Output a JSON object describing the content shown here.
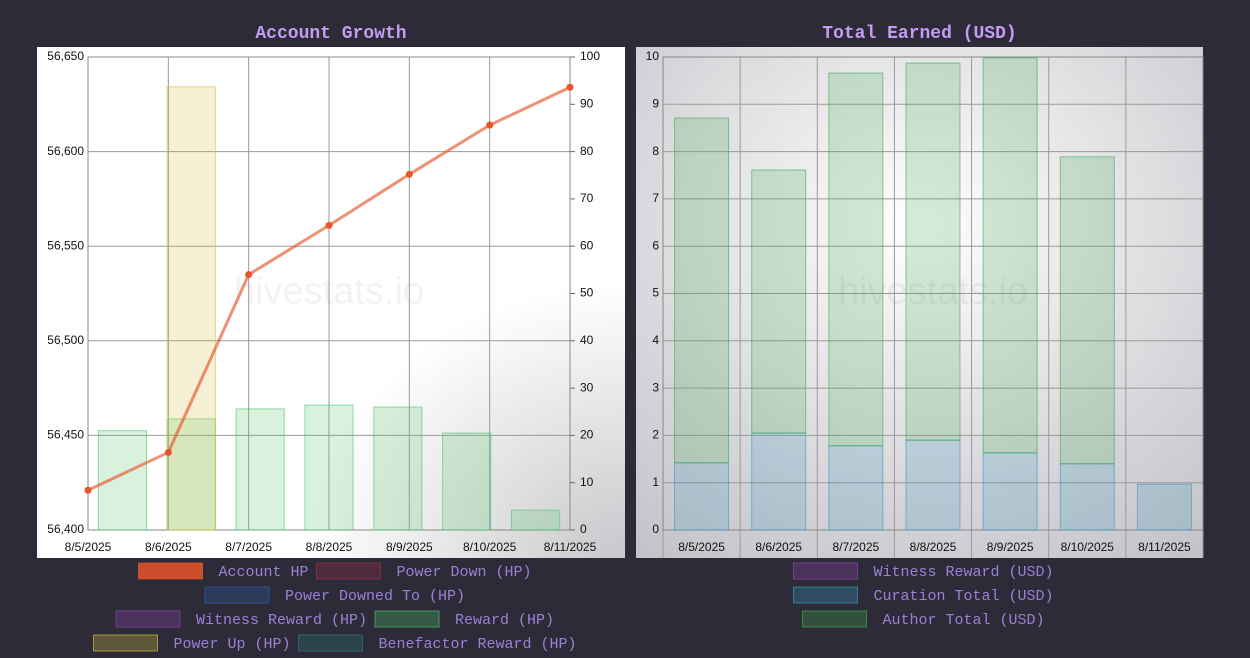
{
  "chart_data": [
    {
      "type": "bar",
      "title": "Account Growth",
      "watermark": "hivestats.io",
      "categories": [
        "8/5/2025",
        "8/6/2025",
        "8/7/2025",
        "8/8/2025",
        "8/9/2025",
        "8/10/2025",
        "8/11/2025"
      ],
      "ylim": [
        56400,
        56650
      ],
      "yticks": [
        {
          "value": 56400,
          "label": "56,400"
        },
        {
          "value": 56450,
          "label": "56,450"
        },
        {
          "value": 56500,
          "label": "56,500"
        },
        {
          "value": 56550,
          "label": "56,550"
        },
        {
          "value": 56600,
          "label": "56,600"
        },
        {
          "value": 56650,
          "label": "56,650"
        }
      ],
      "y2lim": [
        0,
        100
      ],
      "y2ticks": [
        0,
        10,
        20,
        30,
        40,
        50,
        60,
        70,
        80,
        90,
        100
      ],
      "grid": true,
      "legend": "bottom",
      "series": [
        {
          "name": "Account HP",
          "type": "line",
          "color": "#e8552a",
          "values": [
            56421,
            56441,
            56535,
            56561,
            56588,
            56614,
            56634
          ]
        },
        {
          "name": "Power Down (HP)",
          "axis": "y2",
          "color": "#a03050",
          "values": [
            null,
            null,
            null,
            null,
            null,
            null,
            null
          ]
        },
        {
          "name": "Power Downed To (HP)",
          "axis": "y2",
          "color": "#3060b0",
          "values": [
            null,
            null,
            null,
            null,
            null,
            null,
            null
          ]
        },
        {
          "name": "Witness Reward (HP)",
          "axis": "y2",
          "color": "#8e44ad",
          "values": [
            null,
            null,
            null,
            null,
            null,
            null,
            null
          ]
        },
        {
          "name": "Reward (HP)",
          "axis": "y2",
          "color": "#4cc46a",
          "values": [
            21,
            23.5,
            25.6,
            26.4,
            26,
            20.5,
            4.2
          ]
        },
        {
          "name": "Power Up (HP)",
          "axis": "y2",
          "color": "#d8bc40",
          "values": [
            null,
            93.7,
            null,
            null,
            null,
            null,
            null
          ]
        },
        {
          "name": "Benefactor Reward (HP)",
          "axis": "y2",
          "color": "#2a7a7a",
          "values": [
            null,
            null,
            null,
            null,
            null,
            null,
            null
          ]
        }
      ]
    },
    {
      "type": "bar",
      "title": "Total Earned (USD)",
      "watermark": "hivestats.io",
      "stacked": true,
      "categories": [
        "8/5/2025",
        "8/6/2025",
        "8/7/2025",
        "8/8/2025",
        "8/9/2025",
        "8/10/2025",
        "8/11/2025"
      ],
      "ylim": [
        0,
        10
      ],
      "yticks": [
        0,
        1,
        2,
        3,
        4,
        5,
        6,
        7,
        8,
        9,
        10
      ],
      "grid": true,
      "legend": "bottom",
      "series": [
        {
          "name": "Witness Reward (USD)",
          "color": "#8e44ad",
          "values": [
            null,
            null,
            null,
            null,
            null,
            null,
            null
          ]
        },
        {
          "name": "Curation Total (USD)",
          "color": "#3a98c0",
          "values": [
            1.42,
            2.05,
            1.78,
            1.9,
            1.63,
            1.4,
            0.97
          ]
        },
        {
          "name": "Author Total (USD)",
          "color": "#3fa850",
          "values": [
            7.29,
            5.56,
            7.88,
            7.97,
            8.35,
            6.49,
            null
          ]
        }
      ]
    }
  ]
}
